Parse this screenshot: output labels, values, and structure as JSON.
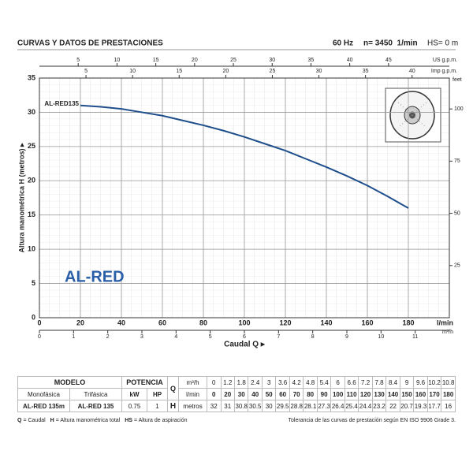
{
  "header": {
    "title": "CURVAS Y DATOS DE PRESTACIONES",
    "freq": "60 Hz",
    "speed": "n= 3450  1/min",
    "hs": "HS= 0 m"
  },
  "chart_data": {
    "type": "line",
    "y_label": "Altura manométrica H (metros) ▸",
    "x_label": "Caudal Q ▸",
    "x_unit": "l/min",
    "xlim": [
      0,
      200
    ],
    "xticks": [
      0,
      20,
      40,
      60,
      80,
      100,
      120,
      140,
      160,
      180
    ],
    "ylim": [
      0,
      35
    ],
    "yticks": [
      0,
      5,
      10,
      15,
      20,
      25,
      30,
      35
    ],
    "y2lim": [
      0,
      114.8
    ],
    "y2ticks": [
      25,
      50,
      75,
      100
    ],
    "y2_unit": "feet",
    "top_axes": [
      {
        "unit": "US g.p.m.",
        "lim": [
          0,
          52.84
        ],
        "ticks": [
          5,
          10,
          15,
          20,
          25,
          30,
          35,
          40,
          45
        ]
      },
      {
        "unit": "Imp g.p.m.",
        "lim": [
          0,
          44
        ],
        "ticks": [
          5,
          10,
          15,
          20,
          25,
          30,
          35,
          40
        ]
      }
    ],
    "bottom_axis": {
      "unit": "m³/h",
      "lim": [
        0,
        12
      ],
      "ticks": [
        0,
        1,
        2,
        3,
        4,
        5,
        6,
        7,
        8,
        9,
        10,
        11
      ]
    },
    "series": [
      {
        "name": "AL-RED135",
        "color": "#1f4e8c",
        "x": [
          20,
          30,
          40,
          50,
          60,
          70,
          80,
          90,
          100,
          110,
          120,
          130,
          140,
          150,
          160,
          170,
          180
        ],
        "values": [
          31,
          30.8,
          30.5,
          30,
          29.5,
          28.8,
          28.1,
          27.3,
          26.4,
          25.4,
          24.4,
          23.2,
          22,
          20.7,
          19.3,
          17.7,
          16
        ]
      }
    ],
    "watermark": "AL-RED",
    "grid": true
  },
  "table": {
    "model_header": "MODELO",
    "power_header": "POTENCIA",
    "q_symbol": "Q",
    "m3h_unit": "m³/h",
    "lmin_unit": "l/min",
    "h_symbol": "H",
    "h_unit": "metros",
    "sub_headers": [
      "Monofásica",
      "Trifásica",
      "kW",
      "HP"
    ],
    "row": [
      "AL-RED 135m",
      "AL-RED 135",
      0.75,
      1
    ],
    "q_m3h": [
      0,
      1.2,
      1.8,
      2.4,
      3,
      3.6,
      4.2,
      4.8,
      5.4,
      6,
      6.6,
      7.2,
      7.8,
      8.4,
      9,
      9.6,
      10.2,
      10.8
    ],
    "q_lmin": [
      0,
      20,
      30,
      40,
      50,
      60,
      70,
      80,
      90,
      100,
      110,
      120,
      130,
      140,
      150,
      160,
      170,
      180
    ],
    "h": [
      32,
      31,
      30.8,
      30.5,
      30,
      29.5,
      28.8,
      28.1,
      27.3,
      26.4,
      25.4,
      24.4,
      23.2,
      22,
      20.7,
      19.3,
      17.7,
      16
    ]
  },
  "footer": {
    "legend": [
      {
        "symbol": "Q",
        "text": "= Caudal"
      },
      {
        "symbol": "H",
        "text": "= Altura manométrica total"
      },
      {
        "symbol": "HS",
        "text": "= Altura de aspiración"
      }
    ],
    "tolerance": "Tolerancia de las curvas de prestación según EN ISO 9906 Grade 3."
  }
}
